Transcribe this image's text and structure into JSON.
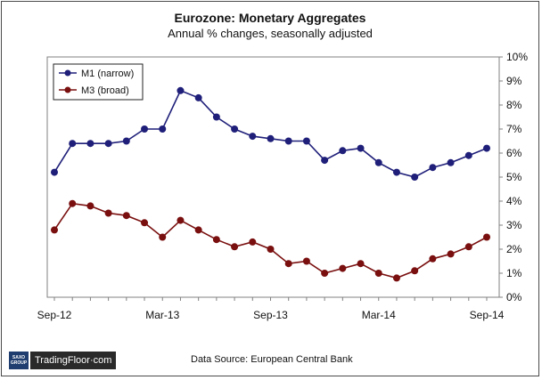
{
  "header": {
    "title": "Eurozone: Monetary Aggregates",
    "subtitle": "Annual  % changes, seasonally adjusted"
  },
  "footer": {
    "source": "Data Source: European Central Bank",
    "logo_text": "TradingFloor·com",
    "logo_saxo_top": "SAXO",
    "logo_saxo_bottom": "GROUP"
  },
  "chart_data": {
    "type": "line",
    "x": [
      "Sep-12",
      "Oct-12",
      "Nov-12",
      "Dec-12",
      "Jan-13",
      "Feb-13",
      "Mar-13",
      "Apr-13",
      "May-13",
      "Jun-13",
      "Jul-13",
      "Aug-13",
      "Sep-13",
      "Oct-13",
      "Nov-13",
      "Dec-13",
      "Jan-14",
      "Feb-14",
      "Mar-14",
      "Apr-14",
      "May-14",
      "Jun-14",
      "Jul-14",
      "Aug-14",
      "Sep-14"
    ],
    "tick_labels": [
      "Sep-12",
      "Mar-13",
      "Sep-13",
      "Mar-14",
      "Sep-14"
    ],
    "series": [
      {
        "name": "M1 (narrow)",
        "color": "#1f1f7a",
        "values": [
          5.2,
          6.4,
          6.4,
          6.4,
          6.5,
          7.0,
          7.0,
          8.6,
          8.3,
          7.5,
          7.0,
          6.7,
          6.6,
          6.5,
          6.5,
          5.7,
          6.1,
          6.2,
          5.6,
          5.2,
          5.0,
          5.4,
          5.6,
          5.9,
          6.2
        ]
      },
      {
        "name": "M3 (broad)",
        "color": "#7a0f0f",
        "values": [
          2.8,
          3.9,
          3.8,
          3.5,
          3.4,
          3.1,
          2.5,
          3.2,
          2.8,
          2.4,
          2.1,
          2.3,
          2.0,
          1.4,
          1.5,
          1.0,
          1.2,
          1.4,
          1.0,
          0.8,
          1.1,
          1.6,
          1.8,
          2.1,
          2.5
        ]
      }
    ],
    "yticks": [
      "0%",
      "1%",
      "2%",
      "3%",
      "4%",
      "5%",
      "6%",
      "7%",
      "8%",
      "9%",
      "10%"
    ],
    "ylim": [
      0,
      10
    ],
    "y_axis_side": "right",
    "grid": false,
    "legend_position": "top-left"
  }
}
